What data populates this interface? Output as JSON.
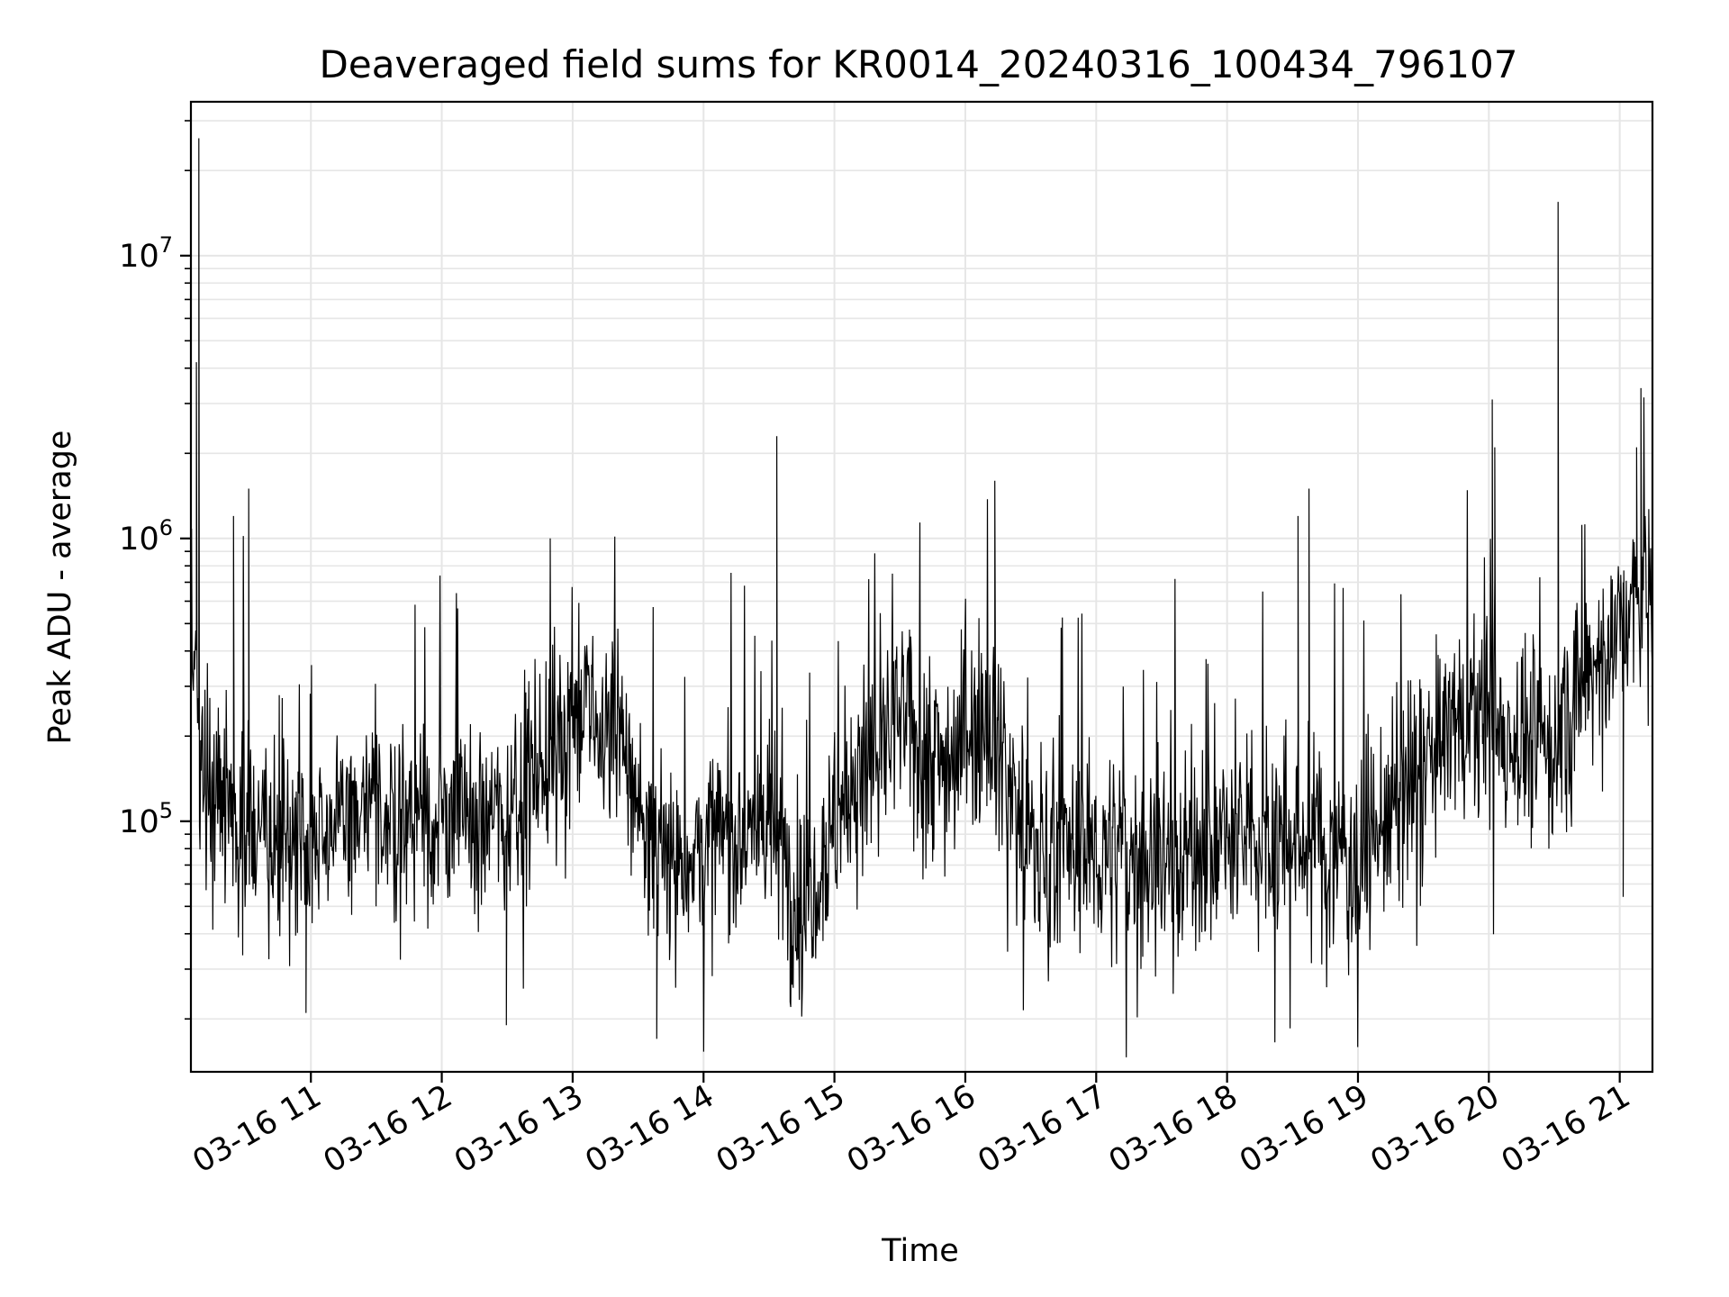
{
  "chart_data": {
    "type": "line",
    "title": "Deaveraged field sums for KR0014_20240316_100434_796107",
    "xlabel": "Time",
    "ylabel": "Peak ADU - average",
    "x_range": [
      "2024-03-16T10:05:00",
      "2024-03-16T21:15:00"
    ],
    "x_ticks": [
      {
        "time": "2024-03-16T11:00:00",
        "label": "03-16 11"
      },
      {
        "time": "2024-03-16T12:00:00",
        "label": "03-16 12"
      },
      {
        "time": "2024-03-16T13:00:00",
        "label": "03-16 13"
      },
      {
        "time": "2024-03-16T14:00:00",
        "label": "03-16 14"
      },
      {
        "time": "2024-03-16T15:00:00",
        "label": "03-16 15"
      },
      {
        "time": "2024-03-16T16:00:00",
        "label": "03-16 16"
      },
      {
        "time": "2024-03-16T17:00:00",
        "label": "03-16 17"
      },
      {
        "time": "2024-03-16T18:00:00",
        "label": "03-16 18"
      },
      {
        "time": "2024-03-16T19:00:00",
        "label": "03-16 19"
      },
      {
        "time": "2024-03-16T20:00:00",
        "label": "03-16 20"
      },
      {
        "time": "2024-03-16T21:00:00",
        "label": "03-16 21"
      }
    ],
    "y_scale": "log",
    "ylim": [
      13000,
      35000000
    ],
    "y_ticks": [
      {
        "value": 100000,
        "base": "10",
        "exp": "5"
      },
      {
        "value": 1000000,
        "base": "10",
        "exp": "6"
      },
      {
        "value": 10000000,
        "base": "10",
        "exp": "7"
      }
    ],
    "grid": true,
    "line_color": "#000000",
    "grid_color": "#e6e6e6",
    "trend": [
      {
        "t": "2024-03-16T10:05:00",
        "y": 450000
      },
      {
        "t": "2024-03-16T10:12:00",
        "y": 140000
      },
      {
        "t": "2024-03-16T10:40:00",
        "y": 80000
      },
      {
        "t": "2024-03-16T11:00:00",
        "y": 95000
      },
      {
        "t": "2024-03-16T11:30:00",
        "y": 110000
      },
      {
        "t": "2024-03-16T12:00:00",
        "y": 100000
      },
      {
        "t": "2024-03-16T12:30:00",
        "y": 110000
      },
      {
        "t": "2024-03-16T13:00:00",
        "y": 240000
      },
      {
        "t": "2024-03-16T13:20:00",
        "y": 200000
      },
      {
        "t": "2024-03-16T13:40:00",
        "y": 70000
      },
      {
        "t": "2024-03-16T14:30:00",
        "y": 100000
      },
      {
        "t": "2024-03-16T14:45:00",
        "y": 50000
      },
      {
        "t": "2024-03-16T15:00:00",
        "y": 100000
      },
      {
        "t": "2024-03-16T15:30:00",
        "y": 230000
      },
      {
        "t": "2024-03-16T15:50:00",
        "y": 160000
      },
      {
        "t": "2024-03-16T16:10:00",
        "y": 260000
      },
      {
        "t": "2024-03-16T16:30:00",
        "y": 80000
      },
      {
        "t": "2024-03-16T17:30:00",
        "y": 75000
      },
      {
        "t": "2024-03-16T17:50:00",
        "y": 80000
      },
      {
        "t": "2024-03-16T18:20:00",
        "y": 90000
      },
      {
        "t": "2024-03-16T19:00:00",
        "y": 75000
      },
      {
        "t": "2024-03-16T19:30:00",
        "y": 150000
      },
      {
        "t": "2024-03-16T19:45:00",
        "y": 230000
      },
      {
        "t": "2024-03-16T20:30:00",
        "y": 180000
      },
      {
        "t": "2024-03-16T20:50:00",
        "y": 380000
      },
      {
        "t": "2024-03-16T21:15:00",
        "y": 700000
      }
    ],
    "spikes": [
      {
        "t": "2024-03-16T10:09:00",
        "y": 26000000
      },
      {
        "t": "2024-03-16T10:08:00",
        "y": 4200000
      },
      {
        "t": "2024-03-16T10:25:00",
        "y": 1200000
      },
      {
        "t": "2024-03-16T10:32:00",
        "y": 1500000
      },
      {
        "t": "2024-03-16T12:50:00",
        "y": 1000000
      },
      {
        "t": "2024-03-16T14:34:00",
        "y": 2300000
      },
      {
        "t": "2024-03-16T16:14:00",
        "y": 1600000
      },
      {
        "t": "2024-03-16T18:33:00",
        "y": 1200000
      },
      {
        "t": "2024-03-16T18:38:00",
        "y": 1500000
      },
      {
        "t": "2024-03-16T20:02:00",
        "y": 3100000
      },
      {
        "t": "2024-03-16T20:03:00",
        "y": 2100000
      },
      {
        "t": "2024-03-16T20:32:00",
        "y": 15500000
      },
      {
        "t": "2024-03-16T21:08:00",
        "y": 2100000
      },
      {
        "t": "2024-03-16T21:10:00",
        "y": 3400000
      }
    ],
    "dips": [
      {
        "t": "2024-03-16T13:39:00",
        "y": 17000
      },
      {
        "t": "2024-03-16T12:30:00",
        "y": 19000
      },
      {
        "t": "2024-03-16T10:58:00",
        "y": 21000
      },
      {
        "t": "2024-03-16T14:40:00",
        "y": 23000
      },
      {
        "t": "2024-03-16T21:02:00",
        "y": 54000
      }
    ]
  }
}
